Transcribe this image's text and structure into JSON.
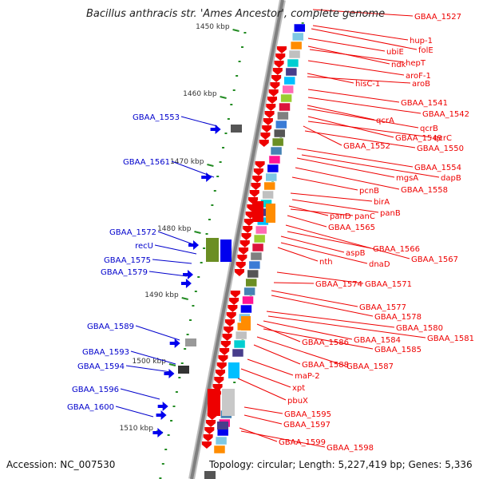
{
  "title": "Bacillus anthracis str. 'Ames Ancestor', complete genome",
  "accession_text": "Accession: NC_007530",
  "summary_text": "Topology: circular; Length: 5,227,419 bp; Genes: 5,336",
  "colors": {
    "backbone": "#808080",
    "tick": "#228b22",
    "right_label": "#ee0000",
    "left_label": "#0000cc",
    "forward_feature": "#0000ee",
    "reverse_feature": "#ee0000",
    "scale_text": "#333333"
  },
  "scale_labels": [
    "1450 kbp",
    "1460 kbp",
    "1470 kbp",
    "1480 kbp",
    "1490 kbp",
    "1500 kbp",
    "1510 kbp"
  ],
  "left_labels": [
    "GBAA_1553",
    "GBAA_1561",
    "GBAA_1572",
    "recU",
    "GBAA_1575",
    "GBAA_1579",
    "GBAA_1589",
    "GBAA_1593",
    "GBAA_1594",
    "GBAA_1596",
    "GBAA_1600"
  ],
  "right_labels": [
    "GBAA_1527",
    "hup-1",
    "folE",
    "ubiE",
    "ndk",
    "hepT",
    "aroF-1",
    "hisC-1",
    "aroB",
    "GBAA_1541",
    "GBAA_1542",
    "qcrA",
    "qcrB",
    "GBAA_1549",
    "qcrC",
    "GBAA_1552",
    "GBAA_1550",
    "GBAA_1554",
    "mgsA",
    "dapB",
    "pcnB",
    "GBAA_1558",
    "birA",
    "panD",
    "panC",
    "panB",
    "GBAA_1565",
    "aspB",
    "GBAA_1566",
    "nth",
    "dnaD",
    "GBAA_1567",
    "GBAA_1574",
    "GBAA_1571",
    "GBAA_1577",
    "GBAA_1578",
    "GBAA_1580",
    "GBAA_1584",
    "GBAA_1581",
    "GBAA_1586",
    "GBAA_1585",
    "GBAA_1588",
    "GBAA_1587",
    "maP-2",
    "xpt",
    "pbuX",
    "GBAA_1595",
    "GBAA_1597",
    "GBAA_1599",
    "GBAA_1598"
  ]
}
